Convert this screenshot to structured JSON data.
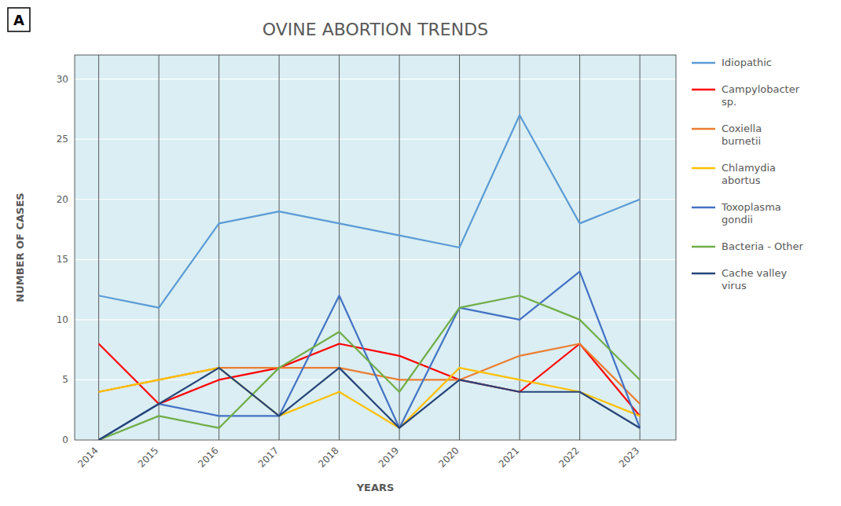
{
  "chart_data": {
    "type": "line",
    "title": "OVINE ABORTION TRENDS",
    "x_label": "YEARS",
    "y_label": "NUMBER OF CASES",
    "annotations": [
      "A"
    ],
    "x": [
      2014,
      2015,
      2016,
      2017,
      2018,
      2019,
      2020,
      2021,
      2022,
      2023
    ],
    "xlim": [
      2013.6,
      2023.6
    ],
    "xticks": [
      2014,
      2015,
      2016,
      2017,
      2018,
      2019,
      2020,
      2021,
      2022,
      2023
    ],
    "ylim": [
      0,
      32
    ],
    "yticks": [
      0,
      5,
      10,
      15,
      20,
      25,
      30
    ],
    "grid": true,
    "legend": "right",
    "series": [
      {
        "name": "Idiopathic",
        "color": "#5B9BD5",
        "values": [
          12,
          11,
          18,
          19,
          18,
          17,
          16,
          27,
          18,
          20
        ]
      },
      {
        "name": "Campylobacter\nsp.",
        "color": "#FF0000",
        "values": [
          8,
          3,
          5,
          6,
          8,
          7,
          5,
          4,
          8,
          2
        ]
      },
      {
        "name": "Coxiella\nburnetii",
        "color": "#ED7D31",
        "values": [
          4,
          5,
          6,
          6,
          6,
          5,
          5,
          7,
          8,
          3
        ]
      },
      {
        "name": "Chlamydia\nabortus",
        "color": "#FFC000",
        "values": [
          4,
          5,
          6,
          2,
          4,
          1,
          6,
          5,
          4,
          2
        ]
      },
      {
        "name": "Toxoplasma\ngondii",
        "color": "#4472C4",
        "values": [
          0,
          3,
          2,
          2,
          12,
          1,
          11,
          10,
          14,
          1
        ]
      },
      {
        "name": "Bacteria - Other",
        "color": "#70AD47",
        "values": [
          0,
          2,
          1,
          6,
          9,
          4,
          11,
          12,
          10,
          5
        ]
      },
      {
        "name": "Cache valley\nvirus",
        "color": "#264478",
        "values": [
          0,
          3,
          6,
          2,
          6,
          1,
          5,
          4,
          4,
          1
        ]
      }
    ]
  }
}
